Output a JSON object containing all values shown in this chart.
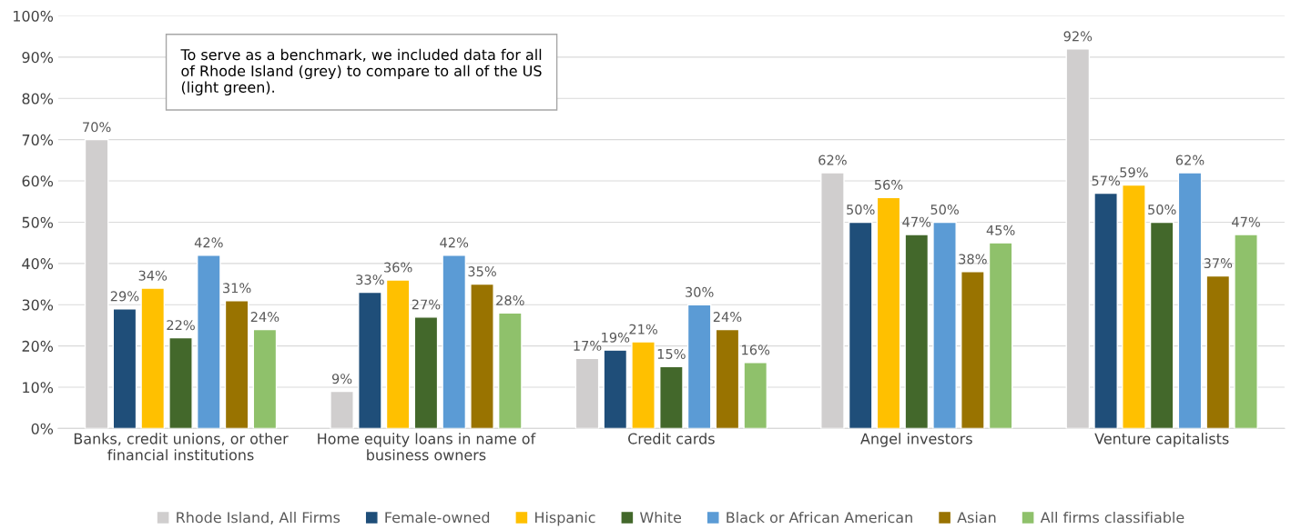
{
  "chart_data": {
    "type": "bar",
    "categories": [
      "Banks, credit unions, or other\nfinancial institutions",
      "Home equity loans in name of\nbusiness owners",
      "Credit cards",
      "Angel investors",
      "Venture capitalists"
    ],
    "series": [
      {
        "name": "Rhode Island, All Firms",
        "color": "#d0cece",
        "values": [
          70,
          9,
          17,
          62,
          92
        ],
        "value_labels": [
          "70%",
          "9%",
          "17%",
          "62%",
          "92%"
        ]
      },
      {
        "name": "Female-owned",
        "color": "#1f4e79",
        "values": [
          29,
          33,
          19,
          50,
          57
        ],
        "value_labels": [
          "29%",
          "33%",
          "19%",
          "50%",
          "57%"
        ]
      },
      {
        "name": "Hispanic",
        "color": "#ffc000",
        "values": [
          34,
          36,
          21,
          56,
          59
        ],
        "value_labels": [
          "34%",
          "36%",
          "21%",
          "56%",
          "59%"
        ]
      },
      {
        "name": "White",
        "color": "#43682b",
        "values": [
          22,
          27,
          15,
          47,
          50
        ],
        "value_labels": [
          "22%",
          "27%",
          "15%",
          "47%",
          "50%"
        ]
      },
      {
        "name": "Black or African American",
        "color": "#5b9bd5",
        "values": [
          42,
          42,
          30,
          50,
          62
        ],
        "value_labels": [
          "42%",
          "42%",
          "30%",
          "50%",
          "62%"
        ]
      },
      {
        "name": "Asian",
        "color": "#997300",
        "values": [
          31,
          35,
          24,
          38,
          37
        ],
        "value_labels": [
          "31%",
          "35%",
          "24%",
          "38%",
          "37%"
        ]
      },
      {
        "name": "All firms classifiable",
        "color": "#8fc16b",
        "values": [
          24,
          28,
          16,
          45,
          47
        ],
        "value_labels": [
          "24%",
          "28%",
          "16%",
          "45%",
          "47%"
        ]
      }
    ],
    "ylim": [
      0,
      100
    ],
    "yticks": [
      {
        "value": 0,
        "label": "0%"
      },
      {
        "value": 10,
        "label": "10%"
      },
      {
        "value": 20,
        "label": "20%"
      },
      {
        "value": 30,
        "label": "30%"
      },
      {
        "value": 40,
        "label": "40%"
      },
      {
        "value": 50,
        "label": "50%"
      },
      {
        "value": 60,
        "label": "60%"
      },
      {
        "value": 70,
        "label": "70%"
      },
      {
        "value": 80,
        "label": "80%"
      },
      {
        "value": 90,
        "label": "90%"
      },
      {
        "value": 100,
        "label": "100%"
      }
    ],
    "grid": "y",
    "legend": "bottom",
    "annotations": [
      "To serve as a benchmark, we included data for all of Rhode Island (grey) to compare to all of the US (light green)."
    ]
  }
}
